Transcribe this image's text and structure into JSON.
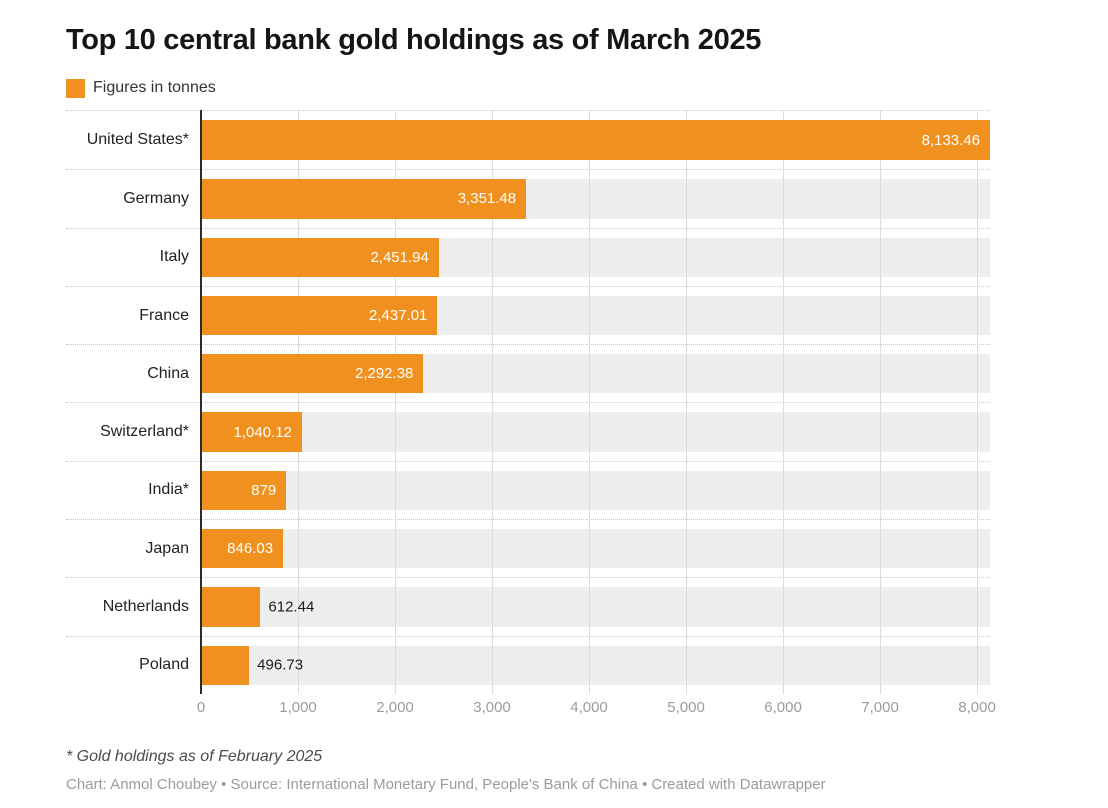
{
  "header": {
    "title": "Top 10 central bank gold holdings as of March 2025",
    "legend_label": "Figures in tonnes"
  },
  "chart_data": {
    "type": "bar",
    "orientation": "horizontal",
    "title": "Top 10 central bank gold holdings as of March 2025",
    "legend": "Figures in tonnes",
    "unit": "tonnes",
    "categories": [
      "United States*",
      "Germany",
      "Italy",
      "France",
      "China",
      "Switzerland*",
      "India*",
      "Japan",
      "Netherlands",
      "Poland"
    ],
    "values": [
      8133.46,
      3351.48,
      2451.94,
      2437.01,
      2292.38,
      1040.12,
      879,
      846.03,
      612.44,
      496.73
    ],
    "value_labels": [
      "8,133.46",
      "3,351.48",
      "2,451.94",
      "2,437.01",
      "2,292.38",
      "1,040.12",
      "879",
      "846.03",
      "612.44",
      "496.73"
    ],
    "label_inside": [
      true,
      true,
      true,
      true,
      true,
      true,
      true,
      true,
      false,
      false
    ],
    "xlim": [
      0,
      8133.46
    ],
    "x_ticks": [
      0,
      1000,
      2000,
      3000,
      4000,
      5000,
      6000,
      7000,
      8000
    ],
    "x_tick_labels": [
      "0",
      "1,000",
      "2,000",
      "3,000",
      "4,000",
      "5,000",
      "6,000",
      "7,000",
      "8,000"
    ],
    "grid": true,
    "legend_position": "top-left"
  },
  "footer": {
    "footnote": "* Gold holdings as of February 2025",
    "credit": "Chart: Anmol Choubey • Source: International Monetary Fund, People's Bank of China • Created with Datawrapper"
  },
  "colors": {
    "bar": "#F0911F",
    "row_background": "#EEEEEE",
    "gridline": "#DCDCDC",
    "axis_line": "#2B2B2B",
    "tick_text": "#9C9C9C",
    "value_label_inside": "#FFFFFF",
    "value_label_outside": "#1B1B1B"
  }
}
